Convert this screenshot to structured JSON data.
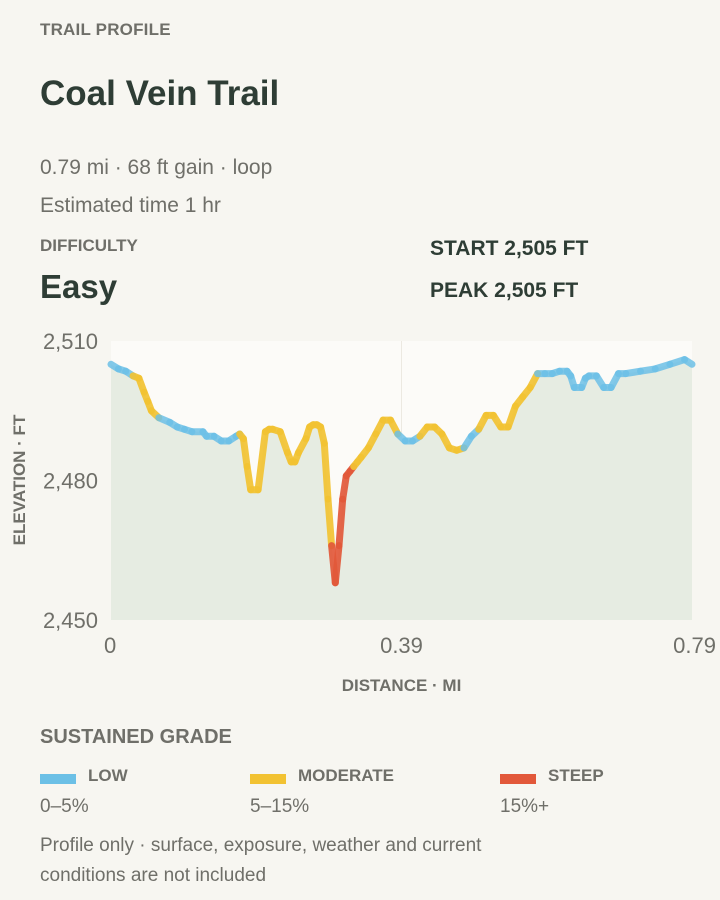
{
  "eyebrow": "TRAIL PROFILE",
  "title": "Coal Vein Trail",
  "stats_line": "0.79 mi · 68 ft gain · loop",
  "time_line": "Estimated time 1 hr",
  "difficulty": {
    "label": "DIFFICULTY",
    "value": "Easy"
  },
  "elevation": {
    "start": "START 2,505 FT",
    "peak": "PEAK 2,505 FT"
  },
  "colors": {
    "low": "#6cc0e6",
    "moderate": "#f2c232",
    "steep": "#e2583a",
    "area_fill": "#e6ece2",
    "plot_bg": "#fcfbf8",
    "tick_text": "#6f6f69"
  },
  "chart_data": {
    "type": "line",
    "title": "",
    "xlabel": "DISTANCE · MI",
    "ylabel": "ELEVATION · FT",
    "xlim": [
      0,
      0.79
    ],
    "ylim": [
      2450,
      2510
    ],
    "x_ticks": [
      0,
      0.395,
      0.79
    ],
    "x_tick_labels": [
      "0",
      "0.39",
      "0.79"
    ],
    "y_ticks": [
      2510,
      2480,
      2450
    ],
    "y_tick_labels": [
      "2,510",
      "2,480",
      "2,450"
    ],
    "grid": "light, x and y major ticks",
    "legend": "none",
    "series": [
      {
        "x": [
          0,
          0.01,
          0.02,
          0.03,
          0.038,
          0.045,
          0.05,
          0.055,
          0.065,
          0.08,
          0.09,
          0.1,
          0.11,
          0.125,
          0.13,
          0.14,
          0.15,
          0.16,
          0.17,
          0.175,
          0.18,
          0.185,
          0.19,
          0.2,
          0.21,
          0.215,
          0.22,
          0.23,
          0.24,
          0.245,
          0.25,
          0.255,
          0.265,
          0.27,
          0.275,
          0.28,
          0.285,
          0.29,
          0.295,
          0.3,
          0.305,
          0.31,
          0.315,
          0.32,
          0.325,
          0.33,
          0.335,
          0.34,
          0.35,
          0.36,
          0.37,
          0.38,
          0.39,
          0.4,
          0.41,
          0.42,
          0.43,
          0.44,
          0.45,
          0.46,
          0.47,
          0.48,
          0.49,
          0.5,
          0.51,
          0.52,
          0.53,
          0.54,
          0.55,
          0.56,
          0.57,
          0.58,
          0.59,
          0.6,
          0.61,
          0.62,
          0.625,
          0.63,
          0.64,
          0.645,
          0.65,
          0.66,
          0.67,
          0.68,
          0.69,
          0.7,
          0.72,
          0.74,
          0.76,
          0.78,
          0.79
        ],
        "y": [
          2505,
          2504,
          2503.5,
          2502.5,
          2502,
          2499,
          2497,
          2495,
          2493.5,
          2492.5,
          2491.5,
          2491,
          2490.5,
          2490.5,
          2489.5,
          2489.5,
          2488.5,
          2488.5,
          2489.5,
          2490,
          2489,
          2483,
          2478,
          2478,
          2490.5,
          2491,
          2491,
          2490.5,
          2486,
          2484,
          2484,
          2486,
          2489,
          2491.5,
          2492,
          2492,
          2491.5,
          2488,
          2476,
          2466,
          2458,
          2466,
          2476,
          2481,
          2482,
          2483,
          2484,
          2485,
          2487,
          2490,
          2493,
          2493,
          2490,
          2488.5,
          2488.5,
          2489.5,
          2491.5,
          2491.5,
          2490,
          2487,
          2486.5,
          2487,
          2489.5,
          2491,
          2494,
          2494,
          2491.5,
          2491.5,
          2496,
          2498,
          2500,
          2503,
          2503,
          2503,
          2503.5,
          2503.5,
          2502.5,
          2500,
          2500,
          2502,
          2502.5,
          2502.5,
          2500,
          2500,
          2503,
          2503,
          2503.5,
          2504,
          2505,
          2506,
          2505
        ]
      }
    ],
    "grade_segments": [
      {
        "from": 0.0,
        "to": 0.03,
        "grade": "low"
      },
      {
        "from": 0.03,
        "to": 0.07,
        "grade": "moderate"
      },
      {
        "from": 0.07,
        "to": 0.175,
        "grade": "low"
      },
      {
        "from": 0.175,
        "to": 0.225,
        "grade": "moderate"
      },
      {
        "from": 0.225,
        "to": 0.3,
        "grade": "moderate"
      },
      {
        "from": 0.3,
        "to": 0.33,
        "grade": "steep"
      },
      {
        "from": 0.33,
        "to": 0.39,
        "grade": "moderate"
      },
      {
        "from": 0.39,
        "to": 0.42,
        "grade": "low"
      },
      {
        "from": 0.42,
        "to": 0.48,
        "grade": "moderate"
      },
      {
        "from": 0.48,
        "to": 0.5,
        "grade": "low"
      },
      {
        "from": 0.5,
        "to": 0.55,
        "grade": "moderate"
      },
      {
        "from": 0.55,
        "to": 0.58,
        "grade": "moderate"
      },
      {
        "from": 0.58,
        "to": 0.79,
        "grade": "low"
      }
    ]
  },
  "legend": {
    "title": "SUSTAINED GRADE",
    "items": [
      {
        "name": "LOW",
        "range": "0–5%",
        "color": "#6cc0e6"
      },
      {
        "name": "MODERATE",
        "range": "5–15%",
        "color": "#f2c232"
      },
      {
        "name": "STEEP",
        "range": "15%+",
        "color": "#e2583a"
      }
    ]
  },
  "footnote": "Profile only · surface, exposure, weather and current conditions are not included"
}
